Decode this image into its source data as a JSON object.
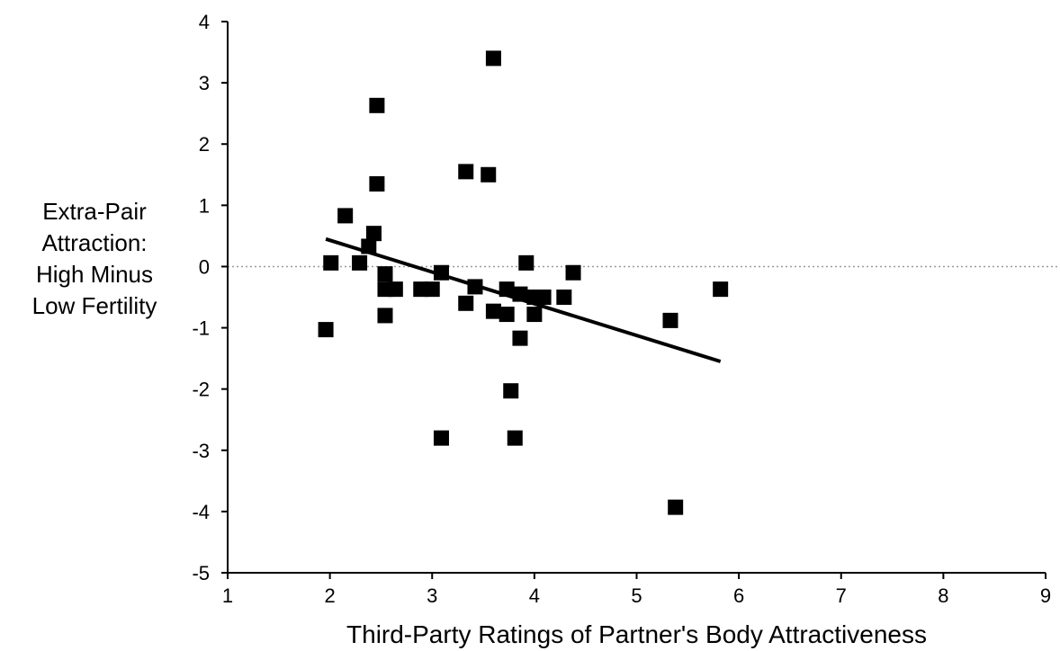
{
  "chart_data": {
    "type": "scatter",
    "ylabel_lines": [
      "Extra-Pair",
      "Attraction:",
      "High Minus",
      "Low Fertility"
    ],
    "xlabel": "Third-Party Ratings of Partner's Body Attractiveness",
    "xlim": [
      1,
      9
    ],
    "ylim": [
      -5,
      4
    ],
    "xticks": [
      1,
      2,
      3,
      4,
      5,
      6,
      7,
      8,
      9
    ],
    "yticks": [
      -5,
      -4,
      -3,
      -2,
      -1,
      0,
      1,
      2,
      3,
      4
    ],
    "grid": false,
    "zero_reference_line": "dotted",
    "points": [
      {
        "x": 1.96,
        "y": -1.03
      },
      {
        "x": 2.01,
        "y": 0.06
      },
      {
        "x": 2.15,
        "y": 0.83
      },
      {
        "x": 2.29,
        "y": 0.06
      },
      {
        "x": 2.38,
        "y": 0.33
      },
      {
        "x": 2.43,
        "y": 0.54
      },
      {
        "x": 2.46,
        "y": 2.63
      },
      {
        "x": 2.46,
        "y": 1.35
      },
      {
        "x": 2.54,
        "y": -0.12
      },
      {
        "x": 2.54,
        "y": -0.37
      },
      {
        "x": 2.54,
        "y": -0.8
      },
      {
        "x": 2.64,
        "y": -0.37
      },
      {
        "x": 2.89,
        "y": -0.37
      },
      {
        "x": 3.0,
        "y": -0.37
      },
      {
        "x": 3.09,
        "y": -0.1
      },
      {
        "x": 3.09,
        "y": -2.8
      },
      {
        "x": 3.33,
        "y": 1.55
      },
      {
        "x": 3.33,
        "y": -0.6
      },
      {
        "x": 3.42,
        "y": -0.33
      },
      {
        "x": 3.55,
        "y": 1.5
      },
      {
        "x": 3.6,
        "y": 3.4
      },
      {
        "x": 3.6,
        "y": -0.73
      },
      {
        "x": 3.73,
        "y": -0.37
      },
      {
        "x": 3.73,
        "y": -0.78
      },
      {
        "x": 3.77,
        "y": -2.03
      },
      {
        "x": 3.81,
        "y": -2.8
      },
      {
        "x": 3.86,
        "y": -1.17
      },
      {
        "x": 3.86,
        "y": -0.45
      },
      {
        "x": 3.92,
        "y": 0.06
      },
      {
        "x": 4.0,
        "y": -0.5
      },
      {
        "x": 4.0,
        "y": -0.78
      },
      {
        "x": 4.09,
        "y": -0.5
      },
      {
        "x": 4.29,
        "y": -0.5
      },
      {
        "x": 4.38,
        "y": -0.1
      },
      {
        "x": 5.33,
        "y": -0.88
      },
      {
        "x": 5.38,
        "y": -3.93
      },
      {
        "x": 5.82,
        "y": -0.37
      }
    ],
    "trendline": {
      "x": [
        1.96,
        5.82
      ],
      "y": [
        0.45,
        -1.55
      ]
    }
  }
}
